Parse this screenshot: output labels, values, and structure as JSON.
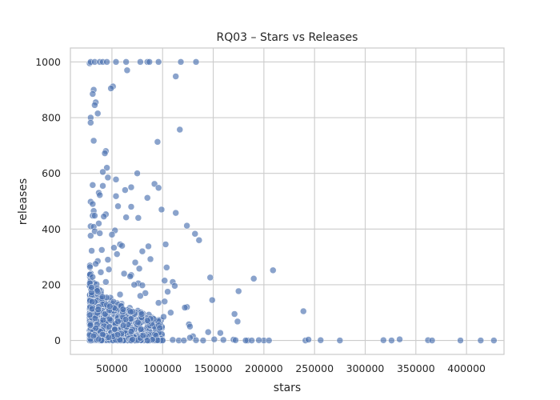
{
  "chart_data": {
    "type": "scatter",
    "title": "RQ03 – Stars vs Releases",
    "xlabel": "stars",
    "ylabel": "releases",
    "xlim": [
      9000,
      437000
    ],
    "ylim": [
      -50,
      1050
    ],
    "xticks": [
      50000,
      100000,
      150000,
      200000,
      250000,
      300000,
      350000,
      400000
    ],
    "xtick_labels": [
      "50000",
      "100000",
      "150000",
      "200000",
      "250000",
      "300000",
      "350000",
      "400000"
    ],
    "yticks": [
      0,
      200,
      400,
      600,
      800,
      1000
    ],
    "ytick_labels": [
      "0",
      "200",
      "400",
      "600",
      "800",
      "1000"
    ],
    "grid": true,
    "point_color": "#4c72b0",
    "point_alpha": 0.65,
    "points": [
      [
        28000,
        995
      ],
      [
        29000,
        1000
      ],
      [
        33000,
        1000
      ],
      [
        38000,
        1000
      ],
      [
        41000,
        1000
      ],
      [
        45000,
        1000
      ],
      [
        54000,
        1000
      ],
      [
        64000,
        1000
      ],
      [
        78000,
        1000
      ],
      [
        85000,
        1000
      ],
      [
        87000,
        1000
      ],
      [
        96000,
        1000
      ],
      [
        118000,
        1000
      ],
      [
        133000,
        1000
      ],
      [
        51000,
        912
      ],
      [
        49000,
        905
      ],
      [
        65000,
        970
      ],
      [
        113000,
        948
      ],
      [
        32000,
        900
      ],
      [
        31000,
        885
      ],
      [
        34000,
        855
      ],
      [
        33000,
        845
      ],
      [
        36000,
        815
      ],
      [
        29000,
        800
      ],
      [
        29000,
        782
      ],
      [
        117000,
        757
      ],
      [
        32000,
        717
      ],
      [
        95000,
        713
      ],
      [
        44000,
        680
      ],
      [
        43000,
        672
      ],
      [
        45000,
        620
      ],
      [
        41000,
        605
      ],
      [
        75000,
        600
      ],
      [
        46000,
        585
      ],
      [
        54000,
        578
      ],
      [
        92000,
        562
      ],
      [
        31000,
        558
      ],
      [
        41000,
        555
      ],
      [
        96000,
        548
      ],
      [
        63000,
        540
      ],
      [
        69000,
        550
      ],
      [
        37000,
        530
      ],
      [
        38000,
        522
      ],
      [
        54000,
        518
      ],
      [
        85000,
        512
      ],
      [
        29000,
        498
      ],
      [
        31000,
        490
      ],
      [
        56000,
        482
      ],
      [
        69000,
        480
      ],
      [
        99000,
        470
      ],
      [
        32000,
        465
      ],
      [
        113000,
        458
      ],
      [
        44000,
        453
      ],
      [
        31000,
        448
      ],
      [
        33000,
        448
      ],
      [
        42000,
        445
      ],
      [
        64000,
        442
      ],
      [
        76000,
        440
      ],
      [
        37000,
        420
      ],
      [
        124000,
        412
      ],
      [
        29000,
        410
      ],
      [
        32000,
        408
      ],
      [
        53000,
        395
      ],
      [
        33000,
        392
      ],
      [
        38000,
        385
      ],
      [
        132000,
        383
      ],
      [
        50000,
        380
      ],
      [
        29000,
        376
      ],
      [
        136000,
        360
      ],
      [
        103000,
        345
      ],
      [
        58000,
        345
      ],
      [
        60000,
        340
      ],
      [
        86000,
        338
      ],
      [
        52000,
        333
      ],
      [
        40000,
        325
      ],
      [
        30000,
        322
      ],
      [
        80000,
        320
      ],
      [
        55000,
        310
      ],
      [
        88000,
        292
      ],
      [
        46000,
        290
      ],
      [
        36000,
        285
      ],
      [
        73000,
        280
      ],
      [
        34000,
        275
      ],
      [
        104000,
        262
      ],
      [
        77000,
        258
      ],
      [
        47000,
        255
      ],
      [
        209000,
        252
      ],
      [
        39000,
        245
      ],
      [
        62000,
        240
      ],
      [
        69000,
        235
      ],
      [
        68000,
        230
      ],
      [
        147000,
        226
      ],
      [
        190000,
        222
      ],
      [
        102000,
        215
      ],
      [
        110000,
        210
      ],
      [
        44000,
        210
      ],
      [
        76000,
        205
      ],
      [
        72000,
        200
      ],
      [
        80000,
        198
      ],
      [
        112000,
        196
      ],
      [
        30000,
        190
      ],
      [
        105000,
        175
      ],
      [
        175000,
        177
      ],
      [
        83000,
        170
      ],
      [
        78000,
        160
      ],
      [
        58000,
        165
      ],
      [
        149000,
        145
      ],
      [
        102000,
        140
      ],
      [
        96000,
        135
      ],
      [
        124000,
        120
      ],
      [
        122000,
        118
      ],
      [
        239000,
        105
      ],
      [
        108000,
        100
      ],
      [
        171000,
        95
      ],
      [
        101000,
        85
      ],
      [
        88000,
        78
      ],
      [
        85000,
        72
      ],
      [
        174000,
        68
      ],
      [
        126000,
        58
      ],
      [
        127000,
        50
      ],
      [
        145000,
        30
      ],
      [
        157000,
        27
      ],
      [
        130000,
        15
      ],
      [
        127000,
        10
      ],
      [
        151000,
        4
      ],
      [
        160000,
        2
      ],
      [
        170000,
        3
      ],
      [
        184000,
        0
      ],
      [
        188000,
        0
      ],
      [
        200000,
        0
      ],
      [
        205000,
        0
      ],
      [
        241000,
        0
      ],
      [
        244000,
        3
      ],
      [
        256000,
        1
      ],
      [
        275000,
        0
      ],
      [
        318000,
        1
      ],
      [
        326000,
        0
      ],
      [
        334000,
        4
      ],
      [
        362000,
        1
      ],
      [
        366000,
        0
      ],
      [
        394000,
        0
      ],
      [
        414000,
        0
      ],
      [
        427000,
        0
      ],
      [
        116000,
        0
      ],
      [
        121000,
        0
      ],
      [
        133000,
        1
      ],
      [
        140000,
        0
      ],
      [
        172000,
        1
      ],
      [
        182000,
        0
      ],
      [
        195000,
        1
      ],
      [
        110000,
        2
      ],
      [
        100000,
        0
      ],
      [
        95000,
        1
      ],
      [
        90000,
        3
      ],
      [
        85000,
        0
      ]
    ],
    "dense_cluster": {
      "x_min": 28000,
      "x_max": 100000,
      "y_min": 0,
      "y_max": 310,
      "count": 900
    }
  }
}
